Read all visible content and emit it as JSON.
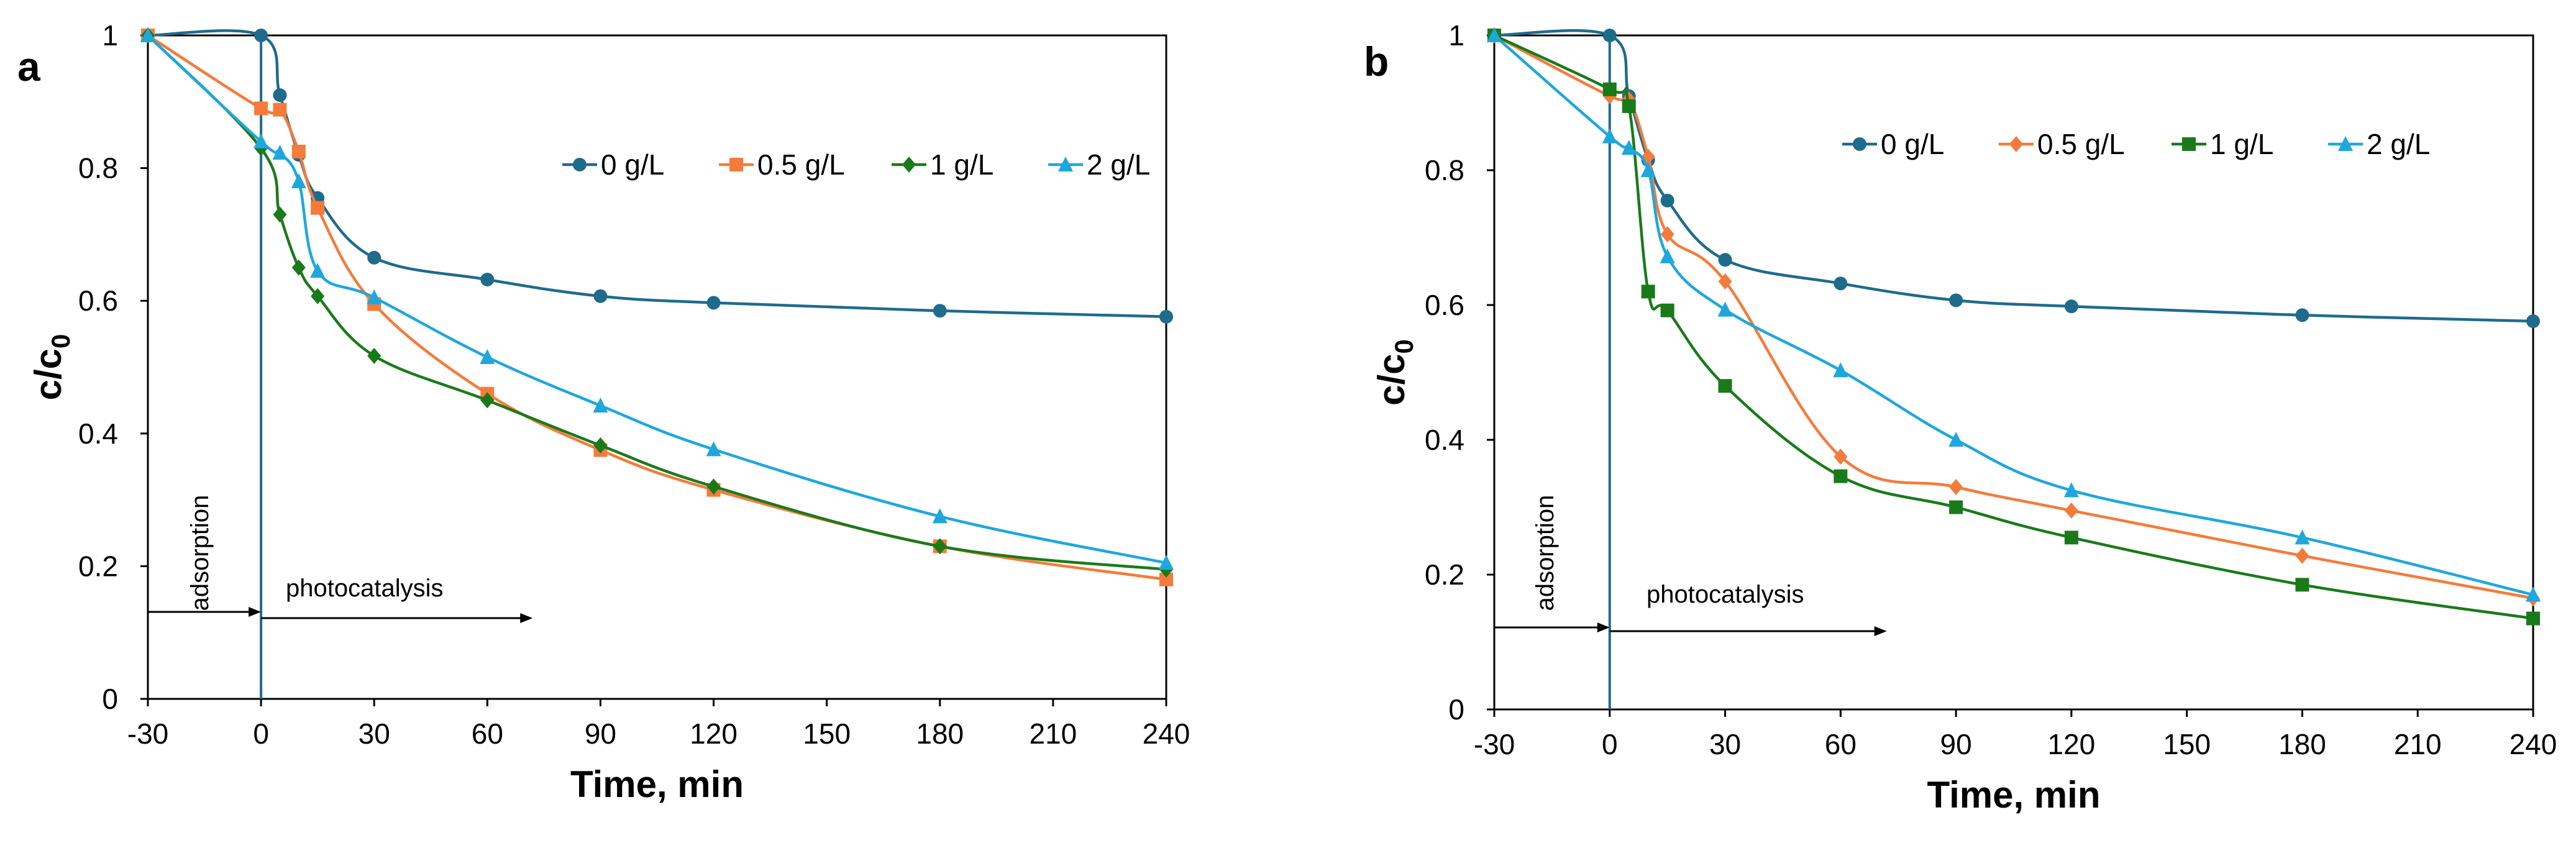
{
  "chart_data": [
    {
      "type": "line",
      "panel_label": "a",
      "xlabel": "Time, min",
      "ylabel_main": "c/c",
      "ylabel_sub": "0",
      "x_ticks": [
        -30,
        0,
        30,
        60,
        90,
        120,
        150,
        180,
        210,
        240
      ],
      "y_ticks": [
        0,
        0.2,
        0.4,
        0.6,
        0.8,
        1
      ],
      "xlim": [
        -30,
        240
      ],
      "ylim": [
        0,
        1
      ],
      "legend_position": "top-right",
      "annotations": {
        "adsorption": "adsorption",
        "photocatalysis": "photocatalysis"
      },
      "series": [
        {
          "name": "0 g/L",
          "color": "#1f6b8c",
          "marker": "circle",
          "x": [
            -30,
            0,
            5,
            10,
            15,
            30,
            60,
            90,
            120,
            180,
            240
          ],
          "y": [
            1.0,
            1.0,
            0.91,
            0.82,
            0.755,
            0.665,
            0.632,
            0.607,
            0.597,
            0.585,
            0.576
          ]
        },
        {
          "name": "0.5 g/L",
          "color": "#f47b3b",
          "marker": "square",
          "x": [
            -30,
            0,
            5,
            10,
            15,
            30,
            60,
            90,
            120,
            180,
            240
          ],
          "y": [
            1.0,
            0.89,
            0.888,
            0.825,
            0.74,
            0.595,
            0.46,
            0.375,
            0.315,
            0.23,
            0.18
          ]
        },
        {
          "name": "1 g/L",
          "color": "#1a7a1a",
          "marker": "diamond",
          "x": [
            -30,
            0,
            5,
            10,
            15,
            30,
            60,
            90,
            120,
            180,
            240
          ],
          "y": [
            1.0,
            0.83,
            0.73,
            0.65,
            0.607,
            0.517,
            0.45,
            0.382,
            0.32,
            0.23,
            0.195
          ]
        },
        {
          "name": "2 g/L",
          "color": "#1ea7dd",
          "marker": "triangle",
          "x": [
            -30,
            0,
            5,
            10,
            15,
            30,
            60,
            90,
            120,
            180,
            240
          ],
          "y": [
            1.0,
            0.84,
            0.823,
            0.78,
            0.645,
            0.605,
            0.515,
            0.442,
            0.376,
            0.275,
            0.205
          ]
        }
      ]
    },
    {
      "type": "line",
      "panel_label": "b",
      "xlabel": "Time, min",
      "ylabel_main": "c/c",
      "ylabel_sub": "0",
      "x_ticks": [
        -30,
        0,
        30,
        60,
        90,
        120,
        150,
        180,
        210,
        240
      ],
      "y_ticks": [
        0,
        0.2,
        0.4,
        0.6,
        0.8,
        1
      ],
      "xlim": [
        -30,
        240
      ],
      "ylim": [
        0,
        1
      ],
      "legend_position": "top-right",
      "annotations": {
        "adsorption": "adsorption",
        "photocatalysis": "photocatalysis"
      },
      "series": [
        {
          "name": "0 g/L",
          "color": "#1f6b8c",
          "marker": "circle",
          "x": [
            -30,
            0,
            5,
            10,
            15,
            30,
            60,
            90,
            120,
            180,
            240
          ],
          "y": [
            1.0,
            1.0,
            0.91,
            0.815,
            0.755,
            0.667,
            0.632,
            0.607,
            0.598,
            0.585,
            0.576
          ]
        },
        {
          "name": "0.5 g/L",
          "color": "#f47b3b",
          "marker": "diamond",
          "x": [
            -30,
            0,
            5,
            10,
            15,
            30,
            60,
            90,
            120,
            180,
            240
          ],
          "y": [
            1.0,
            0.91,
            0.905,
            0.82,
            0.705,
            0.635,
            0.375,
            0.33,
            0.295,
            0.228,
            0.165
          ]
        },
        {
          "name": "1 g/L",
          "color": "#1a7a1a",
          "marker": "square",
          "x": [
            -30,
            0,
            5,
            10,
            15,
            30,
            60,
            90,
            120,
            180,
            240
          ],
          "y": [
            1.0,
            0.92,
            0.895,
            0.62,
            0.592,
            0.48,
            0.346,
            0.3,
            0.255,
            0.185,
            0.135
          ]
        },
        {
          "name": "2 g/L",
          "color": "#1ea7dd",
          "marker": "triangle",
          "x": [
            -30,
            0,
            5,
            10,
            15,
            30,
            60,
            90,
            120,
            180,
            240
          ],
          "y": [
            1.0,
            0.85,
            0.833,
            0.8,
            0.672,
            0.593,
            0.503,
            0.4,
            0.325,
            0.255,
            0.17
          ]
        }
      ]
    }
  ]
}
